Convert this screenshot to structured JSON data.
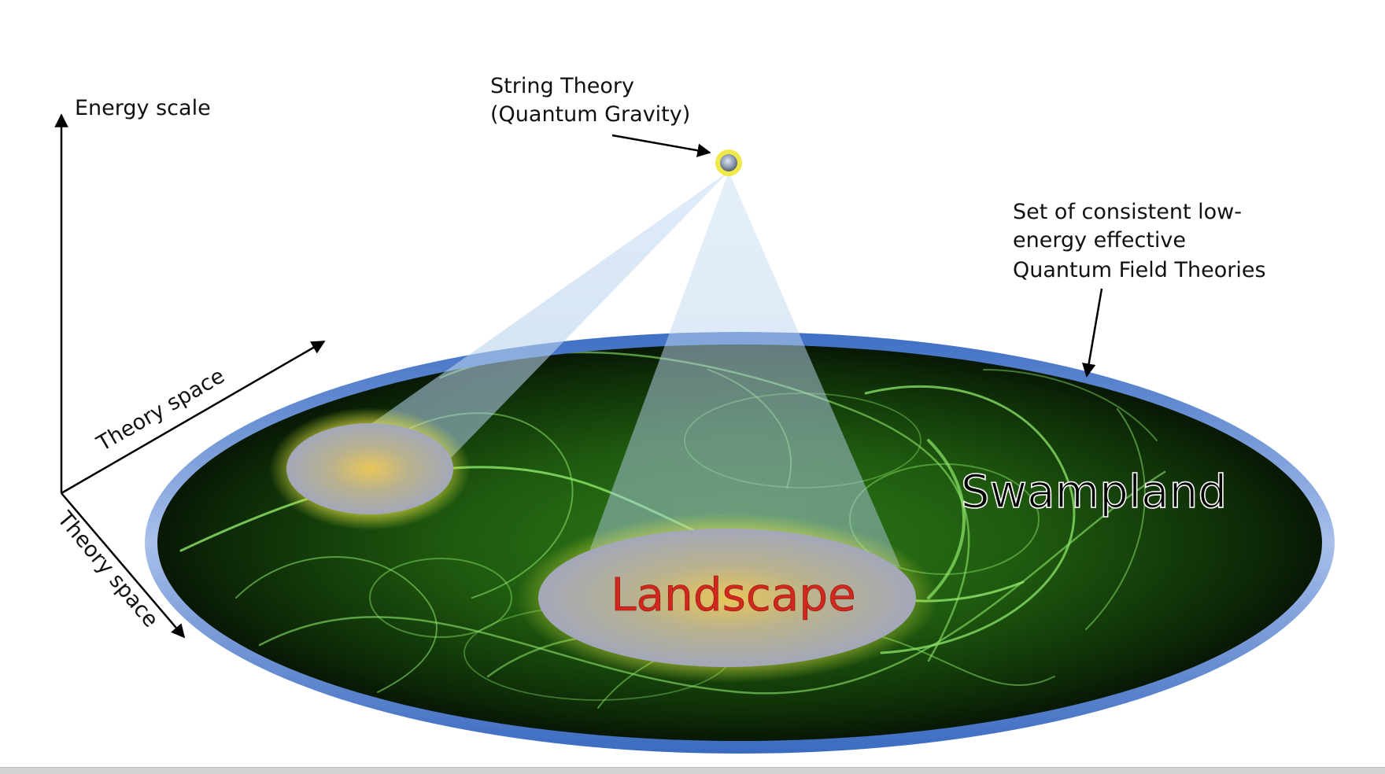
{
  "labels": {
    "energy_scale": "Energy scale",
    "theory_space_upper": "Theory space",
    "theory_space_lower": "Theory space",
    "string_theory_line1": "String Theory",
    "string_theory_line2": "(Quantum Gravity)",
    "qft_line1": "Set of consistent low-",
    "qft_line2": "energy effective",
    "qft_line3": "Quantum Field Theories",
    "swampland": "Swampland",
    "landscape": "Landscape"
  },
  "colors": {
    "swamp_dark": "#061306",
    "swamp_green": "#3f9a1e",
    "rim_blue": "#4f7fd0",
    "cone_blue": "#bcd6ee",
    "island_blue": "#9aa6c8",
    "island_glow": "#e7c84a",
    "landscape_text": "#d0281c",
    "string_node": "#e8e040"
  }
}
